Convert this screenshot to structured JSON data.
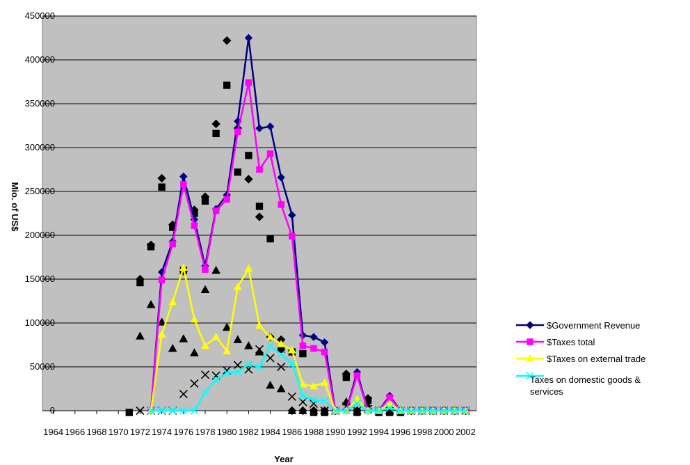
{
  "chart_data": {
    "type": "line",
    "title": "",
    "xlabel": "Year",
    "ylabel": "Mio. of US$",
    "ylim": [
      0,
      450000
    ],
    "yticks": [
      0,
      50000,
      100000,
      150000,
      200000,
      250000,
      300000,
      350000,
      400000,
      450000
    ],
    "x": [
      1964,
      1965,
      1966,
      1967,
      1968,
      1969,
      1970,
      1971,
      1972,
      1973,
      1974,
      1975,
      1976,
      1977,
      1978,
      1979,
      1980,
      1981,
      1982,
      1983,
      1984,
      1985,
      1986,
      1987,
      1988,
      1989,
      1990,
      1991,
      1992,
      1993,
      1994,
      1995,
      1996,
      1997,
      1998,
      1999,
      2000,
      2001,
      2002
    ],
    "xtick_labels": [
      "1964",
      "1966",
      "1968",
      "1970",
      "1972",
      "1974",
      "1976",
      "1978",
      "1980",
      "1982",
      "1984",
      "1986",
      "1988",
      "1990",
      "1992",
      "1994",
      "1996",
      "1998",
      "2000",
      "2002"
    ],
    "grid": true,
    "background": "#c0c0c0",
    "legend_position": "right",
    "series": [
      {
        "name": "$Government Revenue",
        "color": "#000080",
        "marker": "diamond",
        "values": [
          null,
          null,
          null,
          null,
          null,
          null,
          null,
          null,
          null,
          0,
          158000,
          193000,
          267000,
          218000,
          165000,
          230000,
          246000,
          330000,
          425000,
          322000,
          324000,
          266000,
          223000,
          86000,
          84000,
          78000,
          0,
          0,
          44000,
          0,
          0,
          17000,
          0,
          0,
          0,
          0,
          0,
          0,
          0
        ]
      },
      {
        "name": "$Taxes total",
        "color": "#ff00ff",
        "marker": "square",
        "values": [
          null,
          null,
          null,
          null,
          null,
          null,
          null,
          null,
          null,
          0,
          149000,
          190000,
          258000,
          211000,
          161000,
          228000,
          241000,
          318000,
          374000,
          275000,
          293000,
          235000,
          199000,
          74000,
          71000,
          67000,
          0,
          0,
          40000,
          0,
          0,
          15000,
          0,
          0,
          0,
          0,
          0,
          0,
          0
        ]
      },
      {
        "name": "$Taxes on external trade",
        "color": "#ffff00",
        "marker": "triangle",
        "values": [
          null,
          null,
          null,
          null,
          null,
          null,
          null,
          null,
          null,
          0,
          87000,
          124000,
          163000,
          104000,
          74000,
          84000,
          68000,
          141000,
          162000,
          97000,
          84000,
          76000,
          69000,
          30000,
          28000,
          32000,
          0,
          0,
          13000,
          0,
          0,
          8000,
          0,
          0,
          0,
          0,
          0,
          0,
          0
        ]
      },
      {
        "name": "Taxes on domestic goods & services",
        "color": "#00ffff",
        "marker": "x",
        "values": [
          null,
          null,
          null,
          null,
          null,
          null,
          null,
          null,
          null,
          0,
          0,
          0,
          0,
          0,
          21000,
          35000,
          43000,
          44000,
          53000,
          50000,
          74000,
          64000,
          54000,
          17000,
          12000,
          11000,
          0,
          0,
          8000,
          0,
          0,
          3000,
          0,
          0,
          0,
          0,
          0,
          0,
          0
        ]
      }
    ],
    "unnamed_series": [
      {
        "color": "#000000",
        "marker": "diamond",
        "values": [
          null,
          null,
          null,
          null,
          null,
          null,
          null,
          null,
          150000,
          189000,
          265000,
          212000,
          159000,
          229000,
          244000,
          327000,
          422000,
          322000,
          264000,
          221000,
          84000,
          81000,
          0,
          0,
          0,
          0,
          0,
          42000,
          0,
          14000,
          0,
          0,
          0,
          0,
          0,
          0,
          0,
          0,
          0
        ]
      },
      {
        "color": "#000000",
        "marker": "square",
        "values": [
          null,
          null,
          null,
          null,
          null,
          null,
          null,
          -2000,
          146000,
          187000,
          255000,
          209000,
          160000,
          225000,
          239000,
          316000,
          371000,
          272000,
          291000,
          233000,
          196000,
          70000,
          67000,
          65000,
          -2000,
          -2000,
          0,
          38000,
          -2000,
          12000,
          -2000,
          -2000,
          -2000,
          0,
          0,
          0,
          0,
          0,
          0
        ]
      },
      {
        "color": "#000000",
        "marker": "triangle",
        "values": [
          null,
          null,
          null,
          null,
          null,
          null,
          null,
          null,
          85000,
          121000,
          101000,
          71000,
          82000,
          66000,
          138000,
          160000,
          95000,
          81000,
          74000,
          67000,
          29000,
          25000,
          0,
          0,
          0,
          0,
          0,
          10000,
          0,
          6000,
          0,
          0,
          0,
          0,
          0,
          0,
          0,
          0,
          0
        ]
      },
      {
        "color": "#000000",
        "marker": "x",
        "values": [
          null,
          null,
          null,
          null,
          null,
          null,
          null,
          null,
          0,
          0,
          0,
          0,
          19000,
          31000,
          41000,
          40000,
          46000,
          52000,
          47000,
          70000,
          60000,
          50000,
          16000,
          10000,
          8000,
          0,
          0,
          5000,
          0,
          2000,
          0,
          0,
          0,
          0,
          0,
          0,
          0,
          0,
          0
        ]
      }
    ]
  }
}
